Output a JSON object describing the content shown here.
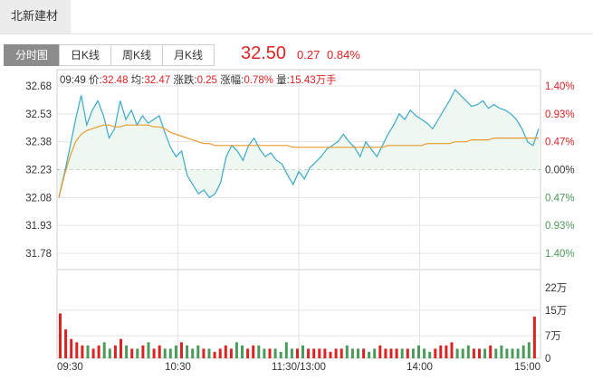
{
  "stock": {
    "name": "北新建材"
  },
  "tabs": [
    "分时图",
    "日K线",
    "周K线",
    "月K线"
  ],
  "quote": {
    "price": "32.50",
    "change": "0.27",
    "change_pct": "0.84%"
  },
  "info": {
    "time": "09:49",
    "price_label": "价:",
    "price": "32.48",
    "avg_label": "均:",
    "avg": "32.47",
    "change_label": "涨跌:",
    "change": "0.25",
    "pct_label": "涨幅:",
    "pct": "0.78%",
    "vol_label": "量:",
    "vol": "15.43万手"
  },
  "colors": {
    "price_line": "#3aa9c9",
    "avg_line": "#e89a2d",
    "up": "#d22",
    "down": "#4a9a5b",
    "area": "#eef8f1",
    "grid": "#e3e3e3"
  },
  "chart_data": {
    "type": "line",
    "y_ticks": [
      "32.68",
      "32.53",
      "32.38",
      "32.23",
      "32.08",
      "31.93",
      "31.78"
    ],
    "right_ticks": [
      "1.40%",
      "0.93%",
      "0.47%",
      "0.00%",
      "0.47%",
      "0.93%",
      "1.40%"
    ],
    "x_ticks": [
      "09:30",
      "10:30",
      "11:30/13:00",
      "14:00",
      "15:00"
    ],
    "vol_ticks": [
      "22万",
      "15万",
      "7万",
      "0"
    ],
    "prev_close": 32.23,
    "ylim": [
      31.78,
      32.68
    ],
    "series": [
      {
        "values": [
          32.08,
          32.21,
          32.35,
          32.5,
          32.63,
          32.47,
          32.55,
          32.6,
          32.52,
          32.4,
          32.45,
          32.6,
          32.5,
          32.55,
          32.47,
          32.52,
          32.48,
          32.5,
          32.52,
          32.43,
          32.35,
          32.3,
          32.33,
          32.2,
          32.15,
          32.1,
          32.12,
          32.08,
          32.1,
          32.16,
          32.3,
          32.36,
          32.33,
          32.28,
          32.36,
          32.4,
          32.34,
          32.3,
          32.32,
          32.28,
          32.26,
          32.2,
          32.15,
          32.22,
          32.18,
          32.24,
          32.27,
          32.3,
          32.34,
          32.36,
          32.38,
          32.42,
          32.38,
          32.35,
          32.3,
          32.38,
          32.34,
          32.3,
          32.36,
          32.42,
          32.47,
          32.53,
          32.5,
          32.55,
          32.52,
          32.5,
          32.48,
          32.45,
          32.5,
          32.55,
          32.6,
          32.66,
          32.63,
          32.6,
          32.57,
          32.58,
          32.6,
          32.56,
          32.58,
          32.56,
          32.55,
          32.53,
          32.5,
          32.45,
          32.38,
          32.36,
          32.45
        ]
      },
      {
        "values": [
          32.08,
          32.2,
          32.3,
          32.38,
          32.42,
          32.44,
          32.45,
          32.46,
          32.47,
          32.47,
          32.46,
          32.46,
          32.47,
          32.47,
          32.47,
          32.47,
          32.47,
          32.46,
          32.46,
          32.45,
          32.43,
          32.42,
          32.41,
          32.4,
          32.39,
          32.38,
          32.37,
          32.37,
          32.36,
          32.36,
          32.36,
          32.36,
          32.36,
          32.36,
          32.36,
          32.36,
          32.36,
          32.36,
          32.36,
          32.36,
          32.36,
          32.36,
          32.35,
          32.35,
          32.35,
          32.35,
          32.35,
          32.35,
          32.35,
          32.35,
          32.35,
          32.35,
          32.35,
          32.35,
          32.35,
          32.35,
          32.35,
          32.35,
          32.35,
          32.36,
          32.36,
          32.36,
          32.36,
          32.36,
          32.36,
          32.36,
          32.37,
          32.37,
          32.37,
          32.37,
          32.37,
          32.38,
          32.38,
          32.38,
          32.39,
          32.39,
          32.39,
          32.39,
          32.4,
          32.4,
          32.4,
          32.4,
          32.4,
          32.4,
          32.4,
          32.4,
          32.4
        ]
      }
    ],
    "volume": [
      14,
      9,
      6,
      5,
      4,
      4,
      3,
      4,
      5,
      3,
      4,
      6,
      4,
      3,
      3,
      4,
      5,
      3,
      4,
      3,
      3,
      4,
      5,
      4,
      3,
      4,
      3,
      3,
      2,
      3,
      4,
      3,
      5,
      4,
      3,
      4,
      4,
      3,
      3,
      3,
      2,
      5,
      3,
      3,
      4,
      3,
      3,
      3,
      3,
      2,
      3,
      3,
      4,
      3,
      3,
      3,
      2,
      3,
      4,
      3,
      3,
      3,
      3,
      3,
      3,
      4,
      3,
      2,
      3,
      4,
      4,
      5,
      3,
      3,
      4,
      3,
      3,
      3,
      4,
      3,
      4,
      3,
      3,
      3,
      4,
      5,
      13
    ],
    "ylim_volume": [
      0,
      22
    ]
  }
}
